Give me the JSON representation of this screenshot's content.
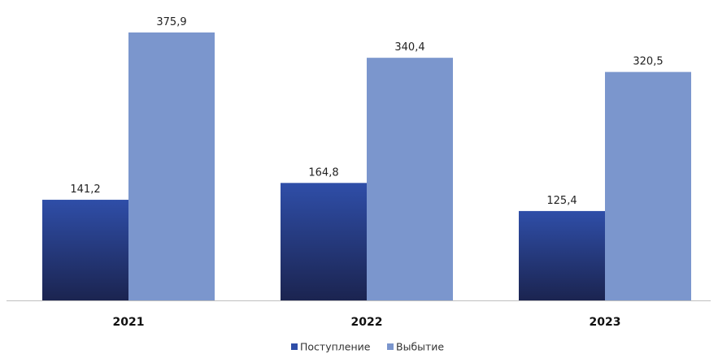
{
  "chart_data": {
    "type": "bar",
    "categories": [
      "2021",
      "2022",
      "2023"
    ],
    "series": [
      {
        "name": "Поступление",
        "values": [
          141.2,
          164.8,
          125.4
        ],
        "labels": [
          "141,2",
          "164,8",
          "125,4"
        ]
      },
      {
        "name": "Выбытие",
        "values": [
          375.9,
          340.4,
          320.5
        ],
        "labels": [
          "375,9",
          "340,4",
          "320,5"
        ]
      }
    ],
    "ylim": [
      0,
      375.9
    ],
    "grid": false,
    "legend_position": "bottom-center",
    "colors": {
      "series_0_top": "#2f4ea8",
      "series_0_bottom": "#1b2450",
      "series_1": "#7b96cd",
      "axis": "#bfbfbf"
    }
  }
}
